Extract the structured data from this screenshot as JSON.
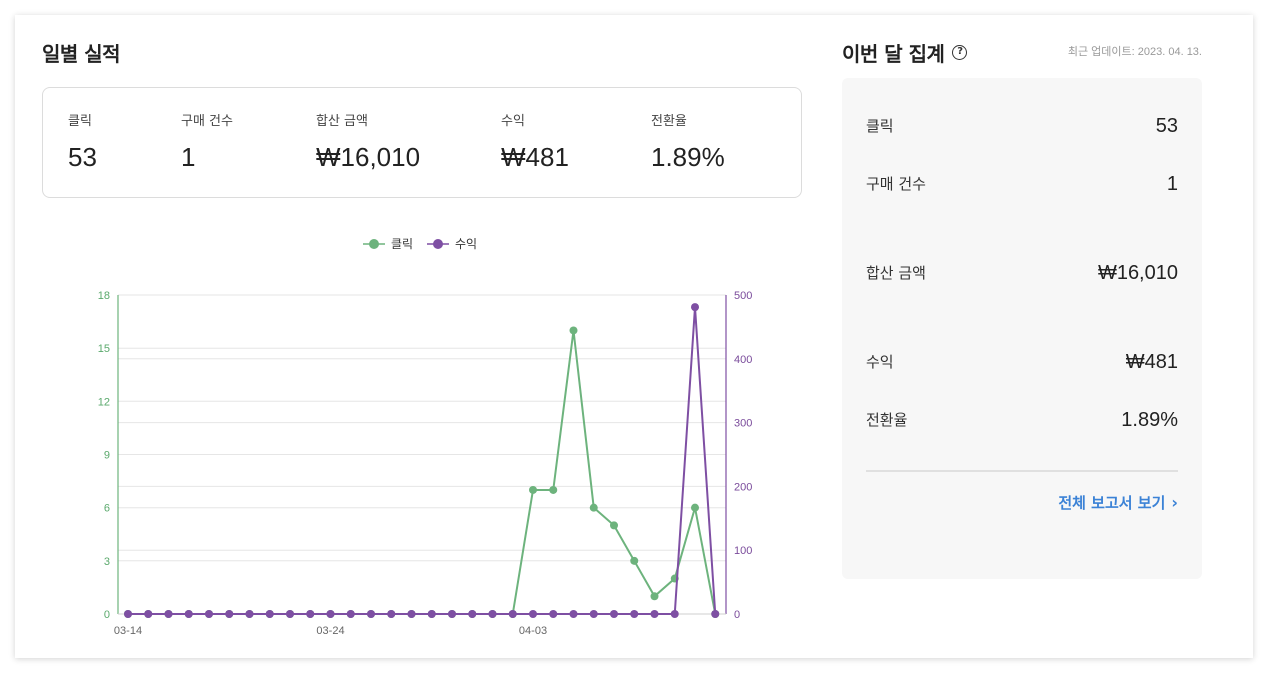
{
  "daily": {
    "title": "일별 실적",
    "stats": [
      {
        "label": "클릭",
        "value": "53"
      },
      {
        "label": "구매 건수",
        "value": "1"
      },
      {
        "label": "합산 금액",
        "value": "₩16,010"
      },
      {
        "label": "수익",
        "value": "₩481"
      },
      {
        "label": "전환율",
        "value": "1.89%"
      }
    ]
  },
  "monthly": {
    "title": "이번 달 집계",
    "help_icon": "help-circle-icon",
    "updated": "최근 업데이트: 2023. 04. 13.",
    "rows": [
      {
        "label": "클릭",
        "value": "53"
      },
      {
        "label": "구매 건수",
        "value": "1"
      },
      {
        "label": "합산 금액",
        "value": "₩16,010"
      },
      {
        "label": "수익",
        "value": "₩481"
      },
      {
        "label": "전환율",
        "value": "1.89%"
      }
    ],
    "report_link": "전체 보고서 보기",
    "report_link_icon": "chevron-right-icon"
  },
  "colors": {
    "clicks": "#6db37d",
    "revenue": "#7e4fa3",
    "link": "#3b82d6"
  },
  "chart_data": {
    "type": "line",
    "x": [
      "03-14",
      "03-15",
      "03-16",
      "03-17",
      "03-18",
      "03-19",
      "03-20",
      "03-21",
      "03-22",
      "03-23",
      "03-24",
      "03-25",
      "03-26",
      "03-27",
      "03-28",
      "03-29",
      "03-30",
      "03-31",
      "04-01",
      "04-02",
      "04-03",
      "04-04",
      "04-05",
      "04-06",
      "04-07",
      "04-08",
      "04-09",
      "04-10",
      "04-11",
      "04-12"
    ],
    "x_tick_labels": [
      "03-14",
      "03-24",
      "04-03"
    ],
    "series": [
      {
        "name": "클릭",
        "axis": "left",
        "color": "#6db37d",
        "values": [
          0,
          0,
          0,
          0,
          0,
          0,
          0,
          0,
          0,
          0,
          0,
          0,
          0,
          0,
          0,
          0,
          0,
          0,
          0,
          0,
          7,
          7,
          16,
          6,
          5,
          3,
          1,
          2,
          6,
          0
        ]
      },
      {
        "name": "수익",
        "axis": "right",
        "color": "#7e4fa3",
        "values": [
          0,
          0,
          0,
          0,
          0,
          0,
          0,
          0,
          0,
          0,
          0,
          0,
          0,
          0,
          0,
          0,
          0,
          0,
          0,
          0,
          0,
          0,
          0,
          0,
          0,
          0,
          0,
          0,
          481,
          0
        ]
      }
    ],
    "y_left": {
      "ticks": [
        0,
        3,
        6,
        9,
        12,
        15,
        18
      ],
      "ylim": [
        0,
        18
      ]
    },
    "y_right": {
      "ticks": [
        0,
        100,
        200,
        300,
        400,
        500
      ],
      "ylim": [
        0,
        500
      ]
    },
    "grid": true,
    "legend": "top-center"
  }
}
